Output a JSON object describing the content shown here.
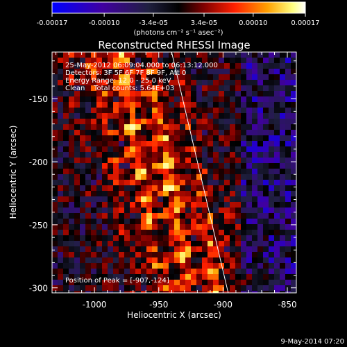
{
  "colorbar": {
    "tick_labels": [
      "-0.00017",
      "-0.00010",
      "-3.4e-05",
      "3.4e-05",
      "0.00010",
      "0.00017"
    ],
    "tick_values": [
      -0.00017,
      -0.0001,
      -3.4e-05,
      3.4e-05,
      0.0001,
      0.00017
    ],
    "range": [
      -0.00017,
      0.00017
    ],
    "units": "(photons cm⁻² s⁻¹ asec⁻²)"
  },
  "image": {
    "title": "Reconstructed RHESSI Image",
    "info_lines": [
      "25-May-2012 06:09:04.000 to 06:13:12.000",
      "Detectors: 3F 5F 6F 7F 8F 9F, Att 0",
      "Energy Range: 12.0 - 25.0 keV",
      "Clean    Total counts: 5.64E+03"
    ],
    "peak_label": "Position of Peak = [-907,-124]",
    "colors": {
      "background": "#000000",
      "limb_line": "#ffffff",
      "colormap": [
        "#0000ff",
        "#4000a0",
        "#202040",
        "#000000",
        "#800000",
        "#ff2000",
        "#ffa000",
        "#ffff80",
        "#ffffff"
      ]
    }
  },
  "axes": {
    "xlabel": "Heliocentric X (arcsec)",
    "ylabel": "Heliocentric Y (arcsec)",
    "x_ticks": [
      "-1000",
      "-950",
      "-900",
      "-850"
    ],
    "x_tick_values": [
      -1000,
      -950,
      -900,
      -850
    ],
    "y_ticks": [
      "-150",
      "-200",
      "-250",
      "-300"
    ],
    "y_tick_values": [
      -150,
      -200,
      -250,
      -300
    ],
    "xlim": [
      -1033,
      -843
    ],
    "ylim": [
      -304,
      -113
    ],
    "limb_line": {
      "start": [
        -940,
        -113
      ],
      "end": [
        -896,
        -304
      ]
    }
  },
  "footer": {
    "timestamp": "9-May-2014 07:20"
  }
}
